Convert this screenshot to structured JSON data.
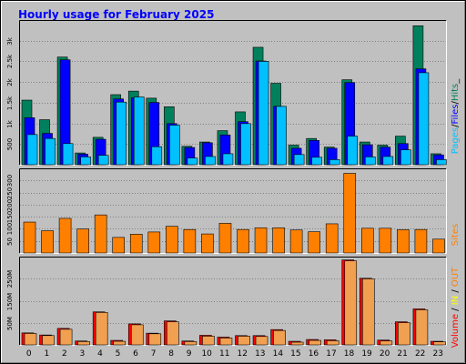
{
  "chart_title": "Hourly usage for February 2025",
  "colors": {
    "frame_bg": "#c0c0c0",
    "title": "#0000ff",
    "pages": "#00c0ff",
    "files": "#0000ff",
    "hits": "#00805c",
    "sites": "#ff8000",
    "kbin": "#ffff00",
    "kbout": "#ff6000",
    "volume": "#ff0000",
    "volume_fill": "#f0a050"
  },
  "legends": {
    "top": [
      {
        "text": "Pages",
        "color": "#00c0ff"
      },
      {
        "text": "/",
        "color": "#000000"
      },
      {
        "text": "Files",
        "color": "#0000ff"
      },
      {
        "text": "/",
        "color": "#000000"
      },
      {
        "text": "Hits",
        "color": "#00805c"
      },
      {
        "text": "_",
        "color": "#000000"
      }
    ],
    "middle": [
      {
        "text": "Sites",
        "color": "#ff8000"
      }
    ],
    "bottom": [
      {
        "text": "Volume",
        "color": "#ff0000"
      },
      {
        "text": " / ",
        "color": "#000000"
      },
      {
        "text": "IN",
        "color": "#ffff00"
      },
      {
        "text": " / ",
        "color": "#000000"
      },
      {
        "text": "OUT",
        "color": "#ff8000"
      }
    ]
  },
  "chart_data": [
    {
      "type": "bar",
      "title": "Hourly usage for February 2025",
      "categories": [
        "0",
        "1",
        "2",
        "3",
        "4",
        "5",
        "6",
        "7",
        "8",
        "9",
        "10",
        "11",
        "12",
        "13",
        "14",
        "15",
        "16",
        "17",
        "18",
        "19",
        "20",
        "21",
        "22",
        "23"
      ],
      "y_ticks": [
        "500",
        "1k",
        "1.5k",
        "2k",
        "2.5k",
        "3k"
      ],
      "ylim": [
        0,
        3650
      ],
      "series": [
        {
          "name": "Hits",
          "values": [
            1650,
            1150,
            2750,
            300,
            700,
            1790,
            1880,
            1700,
            1480,
            470,
            580,
            870,
            1350,
            3000,
            2080,
            500,
            670,
            450,
            2170,
            580,
            500,
            730,
            3550,
            280
          ]
        },
        {
          "name": "Files",
          "values": [
            1200,
            800,
            2680,
            270,
            650,
            1680,
            1710,
            1590,
            1050,
            440,
            560,
            760,
            1100,
            2650,
            1490,
            420,
            620,
            420,
            2100,
            510,
            450,
            540,
            2450,
            250
          ]
        },
        {
          "name": "Pages",
          "values": [
            770,
            670,
            540,
            200,
            240,
            1600,
            1730,
            460,
            1010,
            170,
            210,
            280,
            1050,
            2640,
            1490,
            260,
            190,
            130,
            730,
            200,
            210,
            380,
            2350,
            130
          ]
        }
      ]
    },
    {
      "type": "bar",
      "categories": [
        "0",
        "1",
        "2",
        "3",
        "4",
        "5",
        "6",
        "7",
        "8",
        "9",
        "10",
        "11",
        "12",
        "13",
        "14",
        "15",
        "16",
        "17",
        "18",
        "19",
        "20",
        "21",
        "22",
        "23"
      ],
      "y_ticks": [
        "50",
        "100",
        "150",
        "200",
        "250",
        "300"
      ],
      "ylim": [
        0,
        335
      ],
      "series": [
        {
          "name": "Sites",
          "values": [
            125,
            90,
            140,
            97,
            154,
            63,
            76,
            85,
            108,
            95,
            77,
            120,
            95,
            102,
            102,
            93,
            86,
            118,
            322,
            100,
            100,
            94,
            95,
            56
          ]
        }
      ]
    },
    {
      "type": "bar",
      "categories": [
        "0",
        "1",
        "2",
        "3",
        "4",
        "5",
        "6",
        "7",
        "8",
        "9",
        "10",
        "11",
        "12",
        "13",
        "14",
        "15",
        "16",
        "17",
        "18",
        "19",
        "20",
        "21",
        "22",
        "23"
      ],
      "y_ticks": [
        "50M",
        "150M",
        "250M"
      ],
      "ylim": [
        0,
        288
      ],
      "series": [
        {
          "name": "Volume",
          "values": [
            40,
            33,
            55,
            13,
            110,
            15,
            70,
            39,
            80,
            13,
            32,
            26,
            31,
            31,
            51,
            12,
            18,
            17,
            283,
            222,
            16,
            77,
            120,
            12
          ]
        },
        {
          "name": "OUT",
          "values": [
            38,
            31,
            52,
            11,
            108,
            12,
            67,
            37,
            77,
            11,
            29,
            23,
            29,
            28,
            48,
            9,
            15,
            14,
            280,
            220,
            13,
            74,
            117,
            10
          ]
        }
      ]
    }
  ]
}
